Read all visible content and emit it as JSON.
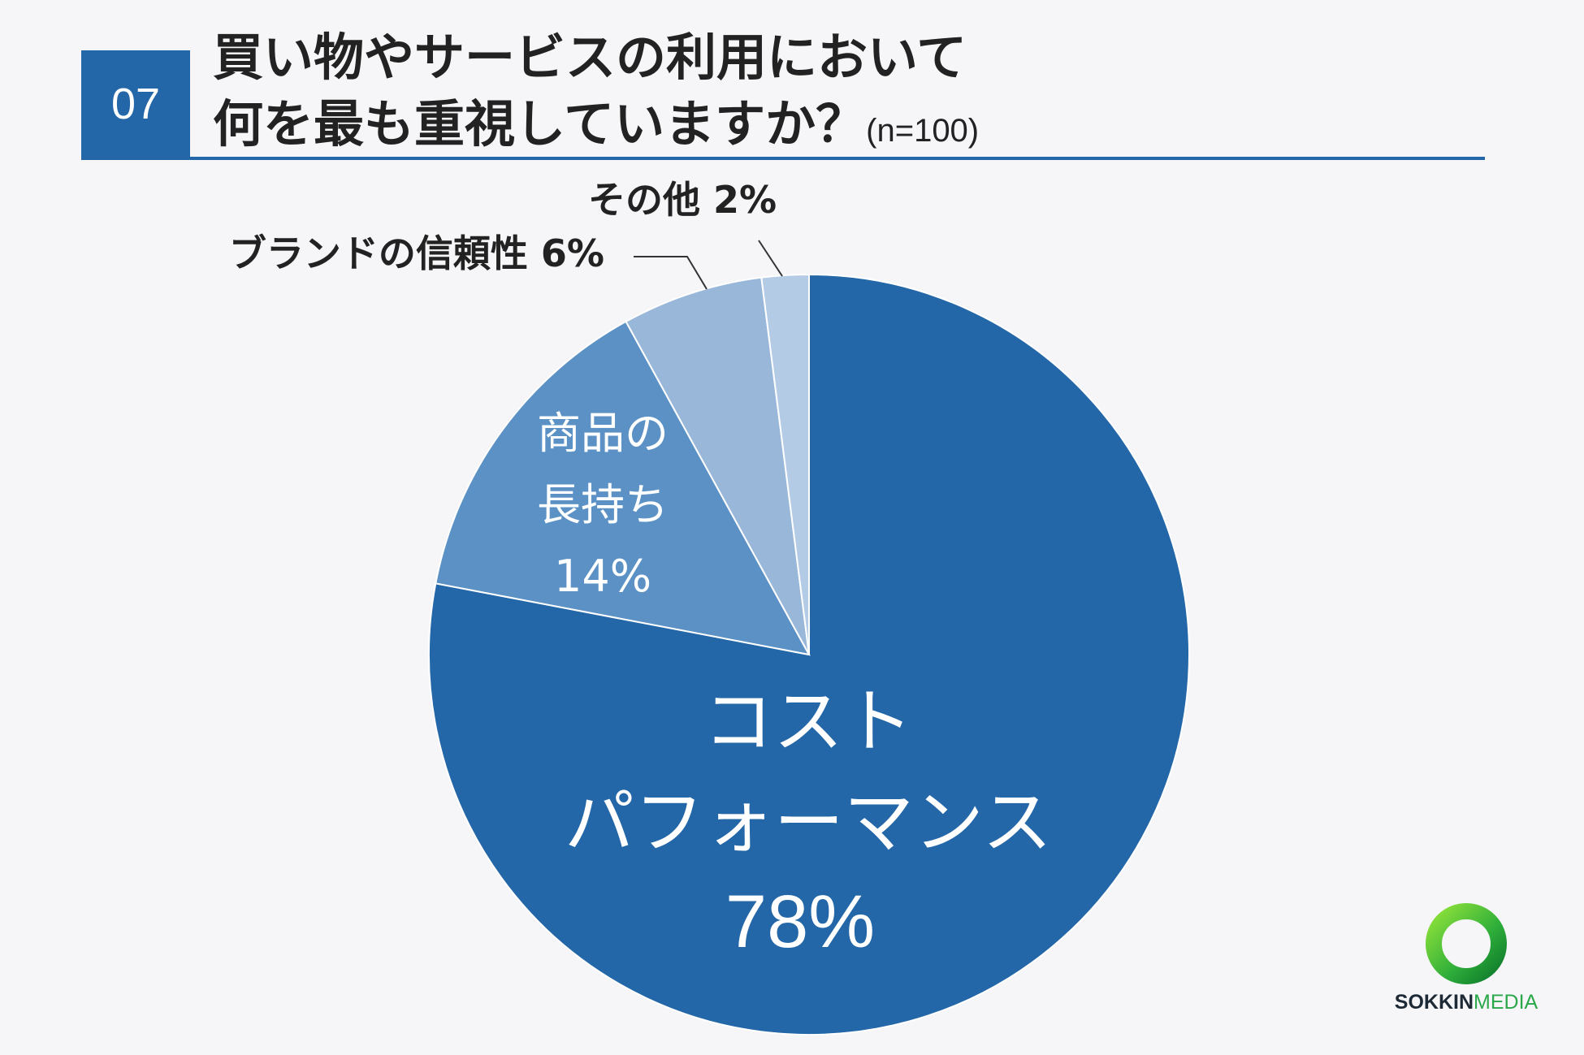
{
  "header": {
    "question_number": "07",
    "title_line1": "買い物やサービスの利用において",
    "title_line2": "何を最も重視していますか？",
    "sample_size": "(n=100)",
    "accent_color": "#2367a8"
  },
  "chart_data": {
    "type": "pie",
    "categories": [
      "コストパフォーマンス",
      "商品の長持ち",
      "ブランドの信頼性",
      "その他"
    ],
    "values": [
      78,
      14,
      6,
      2
    ],
    "unit": "%",
    "colors": [
      "#2367a8",
      "#5b91c4",
      "#99b8d9",
      "#b4cbe6"
    ],
    "labels": [
      {
        "lines": [
          "コスト",
          "パフォーマンス",
          "78%"
        ]
      },
      {
        "lines": [
          "商品の",
          "長持ち",
          "14%"
        ]
      },
      {
        "lines": [
          "ブランドの信頼性 6%"
        ]
      },
      {
        "lines": [
          "その他 2%"
        ]
      }
    ]
  },
  "logo": {
    "text_main": "SOKKIN",
    "text_accent": "MEDIA",
    "ring_icon": "ring-logo-icon"
  }
}
